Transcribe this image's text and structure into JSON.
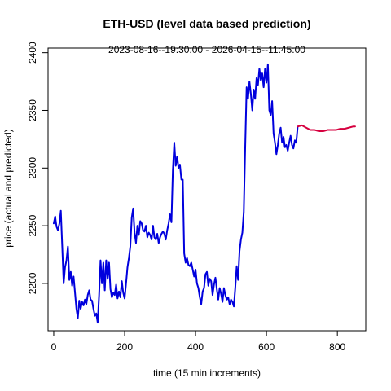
{
  "chart_data": {
    "type": "line",
    "title": "ETH-USD (level data based prediction)",
    "subtitle": "2023-08-16--19:30:00  -  2026-04-15--11:45:00",
    "xlabel": "time (15 min increments)",
    "ylabel": "price (actual and predicted)",
    "xlim": [
      -16,
      880
    ],
    "ylim": [
      2159,
      2404
    ],
    "x_ticks": [
      0,
      200,
      400,
      600,
      800
    ],
    "y_ticks": [
      2200,
      2250,
      2300,
      2350,
      2400
    ],
    "grid": false,
    "series": [
      {
        "color": "#0000dd",
        "points": [
          [
            0,
            2252
          ],
          [
            4,
            2258
          ],
          [
            8,
            2249
          ],
          [
            12,
            2246
          ],
          [
            16,
            2252
          ],
          [
            20,
            2263
          ],
          [
            24,
            2232
          ],
          [
            28,
            2200
          ],
          [
            32,
            2214
          ],
          [
            36,
            2220
          ],
          [
            40,
            2232
          ],
          [
            44,
            2203
          ],
          [
            48,
            2210
          ],
          [
            52,
            2198
          ],
          [
            56,
            2206
          ],
          [
            60,
            2192
          ],
          [
            64,
            2178
          ],
          [
            68,
            2170
          ],
          [
            72,
            2185
          ],
          [
            76,
            2178
          ],
          [
            80,
            2184
          ],
          [
            84,
            2181
          ],
          [
            88,
            2186
          ],
          [
            92,
            2182
          ],
          [
            96,
            2190
          ],
          [
            100,
            2194
          ],
          [
            104,
            2186
          ],
          [
            108,
            2185
          ],
          [
            112,
            2178
          ],
          [
            116,
            2172
          ],
          [
            120,
            2174
          ],
          [
            124,
            2166
          ],
          [
            128,
            2190
          ],
          [
            132,
            2220
          ],
          [
            136,
            2200
          ],
          [
            140,
            2218
          ],
          [
            144,
            2194
          ],
          [
            148,
            2220
          ],
          [
            152,
            2204
          ],
          [
            156,
            2218
          ],
          [
            160,
            2195
          ],
          [
            164,
            2188
          ],
          [
            168,
            2192
          ],
          [
            172,
            2190
          ],
          [
            176,
            2199
          ],
          [
            180,
            2187
          ],
          [
            184,
            2193
          ],
          [
            188,
            2188
          ],
          [
            192,
            2202
          ],
          [
            196,
            2192
          ],
          [
            200,
            2187
          ],
          [
            204,
            2200
          ],
          [
            208,
            2214
          ],
          [
            212,
            2222
          ],
          [
            216,
            2232
          ],
          [
            220,
            2257
          ],
          [
            224,
            2265
          ],
          [
            228,
            2244
          ],
          [
            232,
            2235
          ],
          [
            236,
            2250
          ],
          [
            240,
            2242
          ],
          [
            244,
            2254
          ],
          [
            248,
            2252
          ],
          [
            252,
            2246
          ],
          [
            256,
            2245
          ],
          [
            260,
            2250
          ],
          [
            264,
            2240
          ],
          [
            268,
            2244
          ],
          [
            272,
            2242
          ],
          [
            276,
            2238
          ],
          [
            280,
            2250
          ],
          [
            284,
            2240
          ],
          [
            288,
            2238
          ],
          [
            292,
            2243
          ],
          [
            296,
            2235
          ],
          [
            300,
            2240
          ],
          [
            304,
            2243
          ],
          [
            308,
            2245
          ],
          [
            312,
            2243
          ],
          [
            316,
            2238
          ],
          [
            320,
            2246
          ],
          [
            324,
            2252
          ],
          [
            328,
            2260
          ],
          [
            332,
            2253
          ],
          [
            336,
            2298
          ],
          [
            340,
            2322
          ],
          [
            344,
            2302
          ],
          [
            348,
            2310
          ],
          [
            352,
            2300
          ],
          [
            356,
            2303
          ],
          [
            360,
            2290
          ],
          [
            364,
            2290
          ],
          [
            368,
            2226
          ],
          [
            372,
            2218
          ],
          [
            376,
            2222
          ],
          [
            380,
            2216
          ],
          [
            384,
            2215
          ],
          [
            388,
            2218
          ],
          [
            392,
            2212
          ],
          [
            396,
            2206
          ],
          [
            400,
            2212
          ],
          [
            404,
            2200
          ],
          [
            408,
            2196
          ],
          [
            412,
            2188
          ],
          [
            416,
            2182
          ],
          [
            420,
            2193
          ],
          [
            424,
            2196
          ],
          [
            428,
            2208
          ],
          [
            432,
            2210
          ],
          [
            436,
            2198
          ],
          [
            440,
            2204
          ],
          [
            444,
            2202
          ],
          [
            448,
            2190
          ],
          [
            452,
            2199
          ],
          [
            456,
            2205
          ],
          [
            460,
            2195
          ],
          [
            464,
            2186
          ],
          [
            468,
            2196
          ],
          [
            472,
            2191
          ],
          [
            476,
            2184
          ],
          [
            480,
            2196
          ],
          [
            484,
            2190
          ],
          [
            488,
            2186
          ],
          [
            492,
            2188
          ],
          [
            496,
            2182
          ],
          [
            500,
            2186
          ],
          [
            504,
            2184
          ],
          [
            508,
            2180
          ],
          [
            512,
            2196
          ],
          [
            516,
            2215
          ],
          [
            520,
            2203
          ],
          [
            524,
            2228
          ],
          [
            528,
            2238
          ],
          [
            532,
            2244
          ],
          [
            536,
            2262
          ],
          [
            540,
            2318
          ],
          [
            544,
            2370
          ],
          [
            548,
            2360
          ],
          [
            552,
            2375
          ],
          [
            556,
            2364
          ],
          [
            560,
            2350
          ],
          [
            564,
            2368
          ],
          [
            568,
            2360
          ],
          [
            572,
            2378
          ],
          [
            576,
            2372
          ],
          [
            580,
            2386
          ],
          [
            584,
            2376
          ],
          [
            588,
            2382
          ],
          [
            592,
            2370
          ],
          [
            596,
            2386
          ],
          [
            600,
            2374
          ],
          [
            604,
            2390
          ],
          [
            608,
            2350
          ],
          [
            612,
            2346
          ],
          [
            616,
            2358
          ],
          [
            620,
            2330
          ],
          [
            624,
            2322
          ],
          [
            628,
            2312
          ],
          [
            632,
            2320
          ],
          [
            636,
            2330
          ],
          [
            640,
            2335
          ],
          [
            644,
            2322
          ],
          [
            648,
            2327
          ],
          [
            652,
            2318
          ],
          [
            656,
            2320
          ],
          [
            660,
            2315
          ],
          [
            664,
            2322
          ],
          [
            668,
            2328
          ],
          [
            672,
            2320
          ],
          [
            676,
            2317
          ],
          [
            680,
            2324
          ],
          [
            684,
            2322
          ],
          [
            688,
            2336
          ]
        ]
      },
      {
        "color": "#d6003f",
        "points": [
          [
            688,
            2336
          ],
          [
            700,
            2337
          ],
          [
            712,
            2335
          ],
          [
            724,
            2333
          ],
          [
            736,
            2333
          ],
          [
            748,
            2332
          ],
          [
            760,
            2332
          ],
          [
            772,
            2333
          ],
          [
            784,
            2333
          ],
          [
            796,
            2333
          ],
          [
            808,
            2334
          ],
          [
            820,
            2334
          ],
          [
            832,
            2335
          ],
          [
            844,
            2336
          ],
          [
            850,
            2336
          ]
        ]
      }
    ]
  }
}
